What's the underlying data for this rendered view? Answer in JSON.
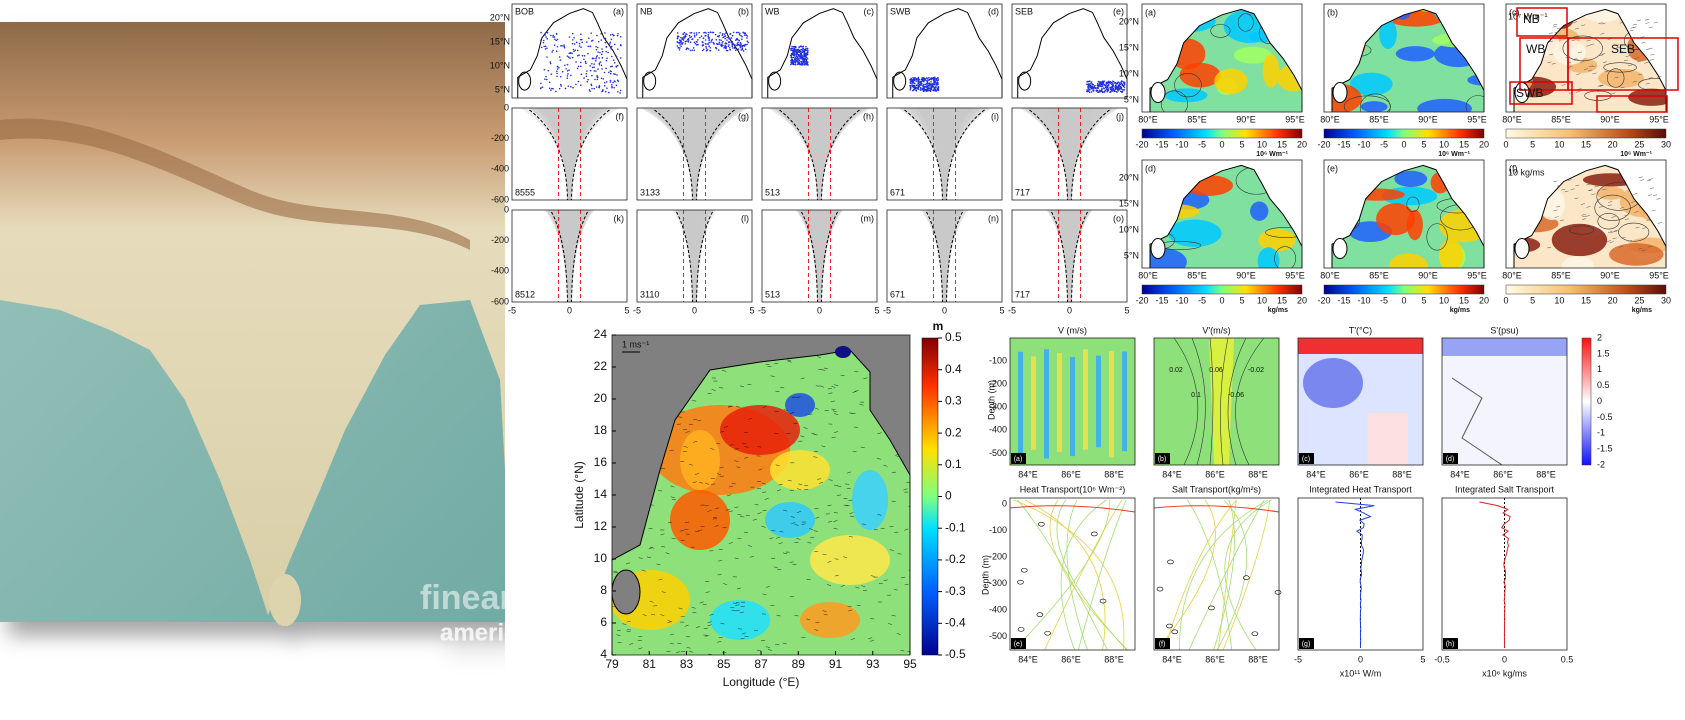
{
  "watermark": [
    "fineart",
    "america"
  ],
  "profiles": {
    "regions": [
      "BOB",
      "NB",
      "WB",
      "SWB",
      "SEB"
    ],
    "map_letters": [
      "(a)",
      "(b)",
      "(c)",
      "(d)",
      "(e)"
    ],
    "lat_ticks": [
      "20°N",
      "15°N",
      "10°N",
      "5°N"
    ],
    "mid_letters": [
      "(f)",
      "(g)",
      "(h)",
      "(i)",
      "(j)"
    ],
    "mid_counts": [
      8555,
      3133,
      513,
      671,
      717
    ],
    "low_letters": [
      "(k)",
      "(l)",
      "(m)",
      "(n)",
      "(o)"
    ],
    "low_counts": [
      8512,
      3110,
      513,
      671,
      717
    ],
    "depth_ticks": [
      0,
      -200,
      -400,
      -600
    ],
    "x_ticks": [
      -5,
      0,
      5
    ]
  },
  "fluxes": {
    "letters": [
      "(a)",
      "(b)",
      "(c)",
      "(d)",
      "(e)",
      "(f)"
    ],
    "lat_ticks": [
      "20°N",
      "15°N",
      "10°N",
      "5°N"
    ],
    "lon_ticks": [
      "80°E",
      "85°E",
      "90°E",
      "95°E"
    ],
    "c_scale": "10⁷ Wm⁻¹",
    "f_scale": "10 kg/ms",
    "boxes": [
      "NB",
      "WB",
      "SEB",
      "SWB"
    ],
    "diverging_ticks": [
      -20,
      -15,
      -10,
      -5,
      0,
      5,
      10,
      15,
      20
    ],
    "positive_ticks": [
      0,
      5,
      10,
      15,
      20,
      25,
      30
    ],
    "top_unit": "10⁶ Wm⁻¹",
    "bottom_unit": "kg/ms"
  },
  "main_map": {
    "vector_label": "1 ms⁻¹",
    "x_label": "Longitude (°E)",
    "y_label": "Latitude (°N)",
    "xlim": [
      79,
      95
    ],
    "ylim": [
      4,
      24
    ],
    "xticks": [
      79,
      81,
      83,
      85,
      87,
      89,
      91,
      93,
      95
    ],
    "yticks": [
      4,
      6,
      8,
      10,
      12,
      14,
      16,
      18,
      20,
      22,
      24
    ],
    "cbar_unit": "m",
    "cbar_lim": [
      -0.5,
      0.5
    ],
    "cbar_ticks": [
      0.5,
      0.4,
      0.3,
      0.2,
      0.1,
      0,
      -0.1,
      -0.2,
      -0.3,
      -0.4,
      -0.5
    ]
  },
  "sections": {
    "top_titles": [
      "V (m/s)",
      "V'(m/s)",
      "T'(°C)",
      "S'(psu)"
    ],
    "top_letters": [
      "(a)",
      "(b)",
      "(c)",
      "(d)"
    ],
    "depth_label": "Depth (m)",
    "top_depth_ticks": [
      -100,
      -200,
      -300,
      -400,
      -500
    ],
    "lon_ticks": [
      "84°E",
      "86°E",
      "88°E"
    ],
    "contour_labels": [
      "0.02",
      "0.1",
      "0.06",
      "-0.06",
      "-0.02"
    ],
    "cbar_lim": [
      -2,
      2
    ],
    "cbar_ticks": [
      2,
      1.5,
      1,
      0.5,
      0,
      -0.5,
      -1,
      -1.5,
      -2
    ],
    "bottom_titles": [
      "Heat Transport(10⁶ Wm⁻²)",
      "Salt Transport(kg/m²s)",
      "Integrated Heat Transport",
      "Integrated Salt Transport"
    ],
    "bottom_letters": [
      "(e)",
      "(f)",
      "(g)",
      "(h)"
    ],
    "bottom_depth_ticks": [
      0,
      -100,
      -200,
      -300,
      -400,
      -500
    ],
    "g_ticks": [
      -5,
      0,
      5
    ],
    "g_unit": "x10¹¹ W/m",
    "h_ticks": [
      -0.5,
      0,
      0.5
    ],
    "h_unit": "x10⁶ kg/ms"
  }
}
